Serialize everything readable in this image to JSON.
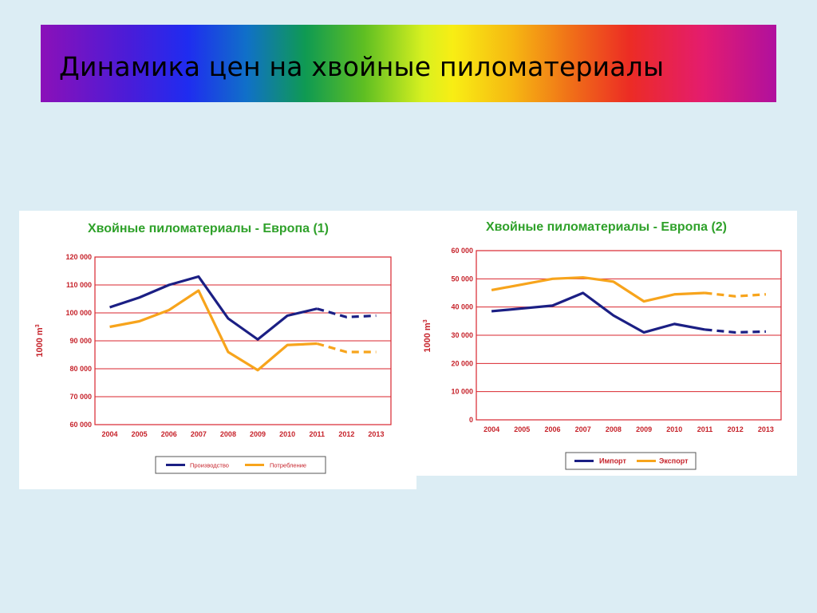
{
  "slide": {
    "title": "Динамика цен на хвойные пиломатериалы"
  },
  "colors": {
    "series_dark": "#1b1f84",
    "series_orange": "#f7a41c",
    "grid": "#d9262e",
    "axis_text": "#c6222a",
    "chart_title": "#2fa12a"
  },
  "chart_data": [
    {
      "type": "line",
      "title": "Хвойные пиломатериалы - Европа (1)",
      "xlabel": "",
      "ylabel": "1000 m",
      "ylabel_sup": "3",
      "x": [
        "2004",
        "2005",
        "2006",
        "2007",
        "2008",
        "2009",
        "2010",
        "2011",
        "2012",
        "2013"
      ],
      "ylim": [
        60000,
        120000
      ],
      "yticks": [
        60000,
        70000,
        80000,
        90000,
        100000,
        110000,
        120000
      ],
      "ytick_labels": [
        "60 000",
        "70 000",
        "80 000",
        "90 000",
        "100 000",
        "110 000",
        "120 000"
      ],
      "forecast_from_index": 7,
      "grid": true,
      "legend_position": "bottom",
      "series": [
        {
          "name": "Производство",
          "color": "#1b1f84",
          "values": [
            102000,
            105500,
            110000,
            113000,
            98000,
            90500,
            99000,
            101500,
            98500,
            99000
          ]
        },
        {
          "name": "Потребление",
          "color": "#f7a41c",
          "values": [
            95000,
            97000,
            101000,
            108000,
            86000,
            79500,
            88500,
            89000,
            86000,
            86000
          ]
        }
      ]
    },
    {
      "type": "line",
      "title": "Хвойные пиломатериалы - Европа (2)",
      "xlabel": "",
      "ylabel": "1000 m",
      "ylabel_sup": "3",
      "x": [
        "2004",
        "2005",
        "2006",
        "2007",
        "2008",
        "2009",
        "2010",
        "2011",
        "2012",
        "2013"
      ],
      "ylim": [
        0,
        60000
      ],
      "yticks": [
        0,
        10000,
        20000,
        30000,
        40000,
        50000,
        60000
      ],
      "ytick_labels": [
        "0",
        "10 000",
        "20 000",
        "30 000",
        "40 000",
        "50 000",
        "60 000"
      ],
      "forecast_from_index": 7,
      "grid": true,
      "legend_position": "bottom",
      "series": [
        {
          "name": "Импорт",
          "color": "#1b1f84",
          "values": [
            38500,
            39500,
            40500,
            45000,
            37000,
            31000,
            34000,
            32000,
            31000,
            31300
          ]
        },
        {
          "name": "Экспорт",
          "color": "#f7a41c",
          "values": [
            46000,
            48000,
            50000,
            50500,
            49000,
            42000,
            44500,
            45000,
            43800,
            44500
          ]
        }
      ]
    }
  ]
}
